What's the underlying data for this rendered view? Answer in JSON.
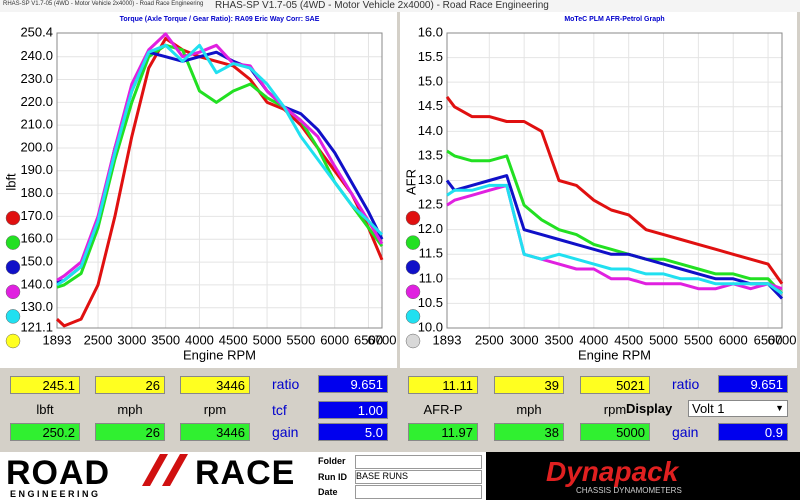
{
  "window": {
    "title": "RHAS-SP V1.7-05  (4WD - Motor Vehicle 2x4000) - Road Race Engineering",
    "caption": "RHAS-SP V1.7-05  (4WD - Motor Vehicle 2x4000) - Road Race Engineering"
  },
  "chart_data": [
    {
      "type": "line",
      "title": "Torque (Axle Torque / Gear Ratio): RA09 Eric Way   Corr: SAE",
      "x_label": "Engine RPM",
      "y_label": "lbft",
      "grid": true,
      "x": [
        1893,
        2000,
        2250,
        2500,
        2750,
        3000,
        3250,
        3500,
        3750,
        4000,
        4250,
        4500,
        4750,
        5000,
        5250,
        5500,
        5750,
        6000,
        6250,
        6500,
        6700
      ],
      "xlim": [
        1893,
        6700
      ],
      "xticks": [
        1893,
        2500,
        3000,
        3500,
        4000,
        4500,
        5000,
        5500,
        6000,
        6500,
        6700
      ],
      "ylim": [
        121.1,
        250.4
      ],
      "yticks": [
        121.1,
        {
          "value": 130,
          "label": "130.0"
        },
        {
          "value": 140,
          "label": "140.0"
        },
        {
          "value": 150,
          "label": "150.0"
        },
        {
          "value": 160,
          "label": "160.0"
        },
        {
          "value": 170,
          "label": "170.0"
        },
        {
          "value": 180,
          "label": "180.0"
        },
        {
          "value": 190,
          "label": "190.0"
        },
        {
          "value": 200,
          "label": "200.0"
        },
        {
          "value": 210,
          "label": "210.0"
        },
        {
          "value": 220,
          "label": "220.0"
        },
        {
          "value": 230,
          "label": "230.0"
        },
        {
          "value": 240,
          "label": "240.0"
        },
        250.4
      ],
      "series": [
        {
          "color": "#e01010",
          "values": [
            125,
            122,
            125,
            140,
            170,
            205,
            235,
            248,
            243,
            240,
            238,
            236,
            230,
            220,
            217,
            210,
            200,
            190,
            180,
            165,
            151
          ]
        },
        {
          "color": "#22e022",
          "values": [
            139,
            140,
            145,
            165,
            195,
            220,
            240,
            245,
            243,
            225,
            220,
            225,
            228,
            222,
            218,
            212,
            200,
            185,
            175,
            165,
            157
          ]
        },
        {
          "color": "#1010c8",
          "values": [
            141,
            142,
            148,
            168,
            200,
            225,
            242,
            240,
            238,
            240,
            242,
            238,
            235,
            225,
            218,
            215,
            208,
            198,
            185,
            172,
            160
          ]
        },
        {
          "color": "#e020e0",
          "values": [
            142,
            144,
            150,
            170,
            200,
            228,
            243,
            250,
            240,
            242,
            245,
            237,
            236,
            225,
            218,
            212,
            205,
            192,
            180,
            168,
            158
          ]
        },
        {
          "color": "#20e0f0",
          "values": [
            140,
            142,
            148,
            168,
            198,
            225,
            242,
            245,
            238,
            245,
            233,
            237,
            235,
            228,
            218,
            205,
            195,
            185,
            175,
            168,
            162
          ]
        }
      ]
    },
    {
      "type": "line",
      "title": "MoTeC PLM AFR-Petrol Graph",
      "x_label": "Engine RPM",
      "y_label": "AFR",
      "grid": true,
      "x": [
        1893,
        2000,
        2250,
        2500,
        2750,
        3000,
        3250,
        3500,
        3750,
        4000,
        4250,
        4500,
        4750,
        5000,
        5250,
        5500,
        5750,
        6000,
        6250,
        6500,
        6700
      ],
      "xlim": [
        1893,
        6700
      ],
      "xticks": [
        1893,
        2500,
        3000,
        3500,
        4000,
        4500,
        5000,
        5500,
        6000,
        6500,
        6700
      ],
      "ylim": [
        10,
        16
      ],
      "yticks": [
        {
          "value": 10,
          "label": "10.0"
        },
        10.5,
        {
          "value": 11,
          "label": "11.0"
        },
        11.5,
        {
          "value": 12,
          "label": "12.0"
        },
        12.5,
        {
          "value": 13,
          "label": "13.0"
        },
        13.5,
        {
          "value": 14,
          "label": "14.0"
        },
        14.5,
        {
          "value": 15,
          "label": "15.0"
        },
        15.5,
        {
          "value": 16,
          "label": "16.0"
        }
      ],
      "series": [
        {
          "color": "#e01010",
          "values": [
            14.7,
            14.5,
            14.3,
            14.3,
            14.2,
            14.2,
            14.0,
            13.0,
            12.9,
            12.6,
            12.4,
            12.3,
            12.0,
            11.9,
            11.8,
            11.7,
            11.6,
            11.5,
            11.4,
            11.3,
            10.9
          ]
        },
        {
          "color": "#22e022",
          "values": [
            13.6,
            13.5,
            13.4,
            13.4,
            13.5,
            12.5,
            12.2,
            12.0,
            11.9,
            11.7,
            11.6,
            11.5,
            11.4,
            11.4,
            11.3,
            11.2,
            11.1,
            11.1,
            11.0,
            11.0,
            10.7
          ]
        },
        {
          "color": "#1010c8",
          "values": [
            13.0,
            12.8,
            12.9,
            13.0,
            13.1,
            12.0,
            11.9,
            11.8,
            11.7,
            11.6,
            11.5,
            11.5,
            11.4,
            11.3,
            11.2,
            11.1,
            11.0,
            11.0,
            10.9,
            10.9,
            10.6
          ]
        },
        {
          "color": "#e020e0",
          "values": [
            12.5,
            12.6,
            12.7,
            12.8,
            12.9,
            11.5,
            11.4,
            11.3,
            11.2,
            11.2,
            11.0,
            11.0,
            10.9,
            10.9,
            10.9,
            10.8,
            10.8,
            10.9,
            10.8,
            10.9,
            10.8
          ]
        },
        {
          "color": "#20e0f0",
          "values": [
            12.7,
            12.8,
            12.8,
            12.9,
            12.9,
            11.5,
            11.4,
            11.5,
            11.4,
            11.3,
            11.2,
            11.2,
            11.1,
            11.1,
            11.0,
            11.0,
            10.9,
            10.9,
            10.9,
            10.9,
            10.7
          ]
        }
      ]
    }
  ],
  "readouts": {
    "left": {
      "top": [
        "245.1",
        "26",
        "3446"
      ],
      "labels": [
        "lbft",
        "mph",
        "rpm"
      ],
      "bottom": [
        "250.2",
        "26",
        "3446"
      ],
      "side_labels": [
        "ratio",
        "tcf",
        "gain"
      ],
      "side_values": [
        "9.651",
        "1.00",
        "5.0"
      ]
    },
    "right": {
      "top": [
        "11.11",
        "39",
        "5021"
      ],
      "labels": [
        "AFR-P",
        "mph",
        "rpm"
      ],
      "bottom": [
        "11.97",
        "38",
        "5000"
      ],
      "side_labels": [
        "ratio",
        "gain"
      ],
      "side_values": [
        "9.651",
        "0.9"
      ],
      "display_label": "Display",
      "display_value": "Volt 1"
    }
  },
  "footer": {
    "logo_left": "ROAD",
    "logo_right": "RACE",
    "logo_sub": "E N G I N E E R I N G",
    "fields": [
      "Folder",
      "Run ID",
      "Date"
    ],
    "run_id": "BASE RUNS",
    "brand": "Dynapack",
    "brand_sub": "CHASSIS DYNAMOMETERS"
  }
}
